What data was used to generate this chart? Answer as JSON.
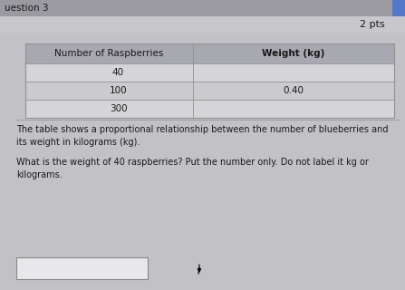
{
  "title_text": "2 pts",
  "header_row": [
    "Number of Raspberries",
    "Weight (kg)"
  ],
  "rows": [
    [
      "40",
      ""
    ],
    [
      "100",
      "0.40"
    ],
    [
      "300",
      ""
    ]
  ],
  "paragraph1": "The table shows a proportional relationship between the number of blueberries and\nits weight in kilograms (kg).",
  "paragraph2": "What is the weight of 40 raspberries? Put the number only. Do not label it kg or\nkilograms.",
  "bg_color": "#c2c2c6",
  "header_bg": "#a8a8b0",
  "row_bg_alt": "#cbcbce",
  "row_bg_main": "#d5d5d8",
  "table_border": "#909090",
  "text_color": "#1a1a1a",
  "answer_box_color": "#e8e8ea",
  "top_bar_color": "#b8b8bc",
  "top_strip_color": "#c8c8cc"
}
